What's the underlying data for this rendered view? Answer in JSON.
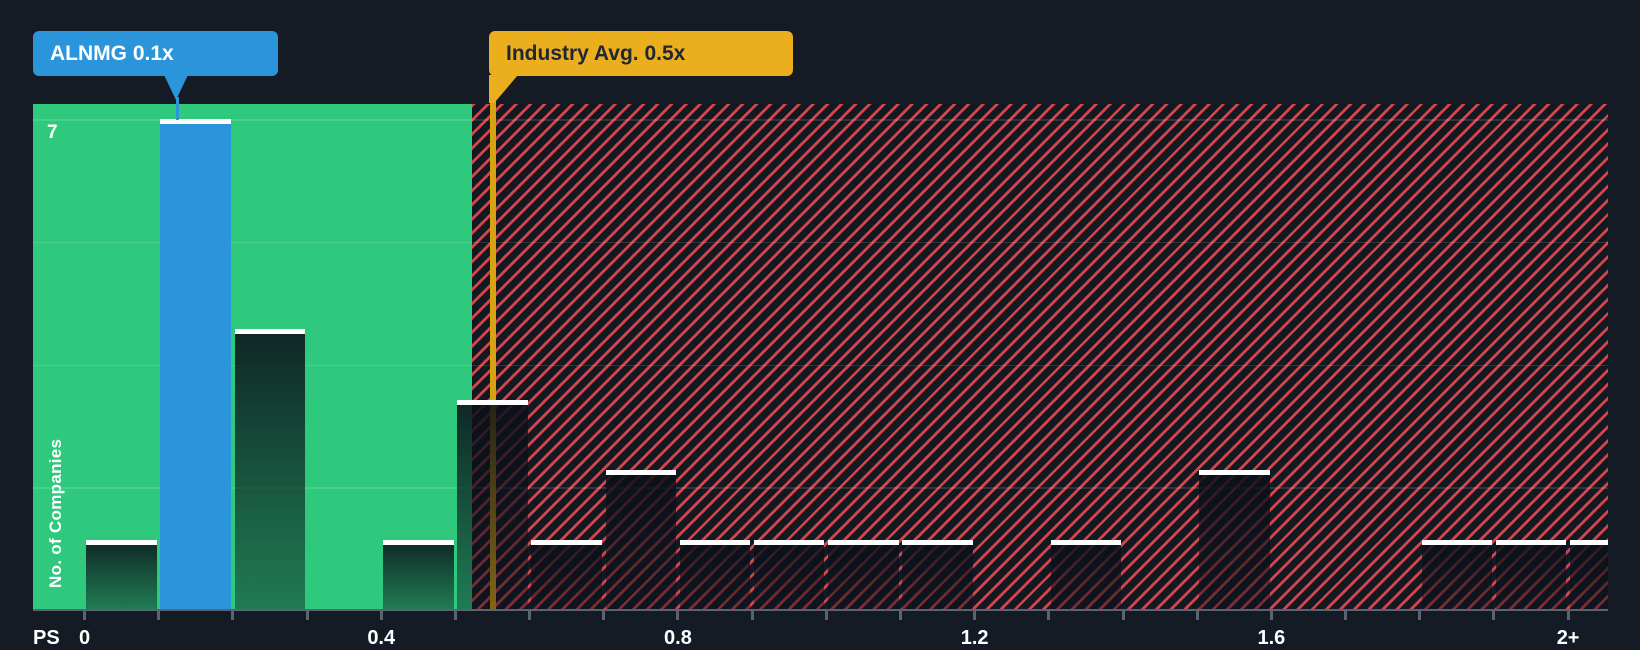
{
  "callouts": {
    "company": {
      "label": "ALNMG 0.1x"
    },
    "industry": {
      "label": "Industry Avg. 0.5x"
    }
  },
  "y_axis": {
    "label": "No. of Companies",
    "top_tick_label": "7"
  },
  "x_axis": {
    "unit_label": "PS",
    "tick_labels": [
      "0",
      "0.4",
      "0.8",
      "1.2",
      "1.6",
      "2+"
    ]
  },
  "chart_data": {
    "type": "bar",
    "subtype": "histogram",
    "xlabel": "PS",
    "ylabel": "No. of Companies",
    "bin_width": 0.1,
    "categories": [
      "0.0-0.1",
      "0.1-0.2",
      "0.2-0.3",
      "0.3-0.4",
      "0.4-0.5",
      "0.5-0.6",
      "0.6-0.7",
      "0.7-0.8",
      "0.8-0.9",
      "0.9-1.0",
      "1.0-1.1",
      "1.1-1.2",
      "1.2-1.3",
      "1.3-1.4",
      "1.4-1.5",
      "1.5-1.6",
      "1.6-1.7",
      "1.7-1.8",
      "1.8-1.9",
      "1.9-2.0",
      "2.0+"
    ],
    "values": [
      1,
      7,
      4,
      0,
      1,
      3,
      1,
      2,
      1,
      1,
      1,
      1,
      0,
      1,
      0,
      2,
      0,
      0,
      1,
      1,
      1
    ],
    "ylim": [
      0,
      7
    ],
    "y_top_gridline_label": "7",
    "x_tick_interval": 0.1,
    "x_labeled_ticks": [
      "0",
      "0.4",
      "0.8",
      "1.2",
      "1.6",
      "2+"
    ],
    "gridlines": "horizontal-quarters",
    "highlight": {
      "index": 1,
      "category": "0.1-0.2",
      "label": "ALNMG 0.1x",
      "value": "0.1x",
      "color": "#2B95DC"
    },
    "industry_avg": {
      "value": "0.5x",
      "label": "Industry Avg. 0.5x",
      "color": "#EBAE1D"
    },
    "regions": [
      {
        "name": "below-industry-average",
        "style": "solid-green",
        "color": "#2FC97E"
      },
      {
        "name": "above-industry-average",
        "style": "red-diagonal-hatch",
        "color": "#F04A4E"
      }
    ]
  },
  "colors": {
    "background": "#151B24",
    "green_zone": "#2FC97E",
    "hatch_red": "#F04A4E",
    "highlight_blue": "#2B95DC",
    "industry_yellow": "#EBAE1D",
    "axis_gray": "#5A6470",
    "bar_cap": "#FFFFFF"
  }
}
